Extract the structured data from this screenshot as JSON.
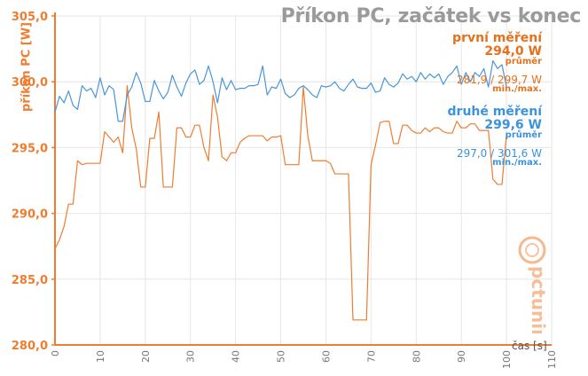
{
  "title": "Příkon PC, začátek vs konec",
  "ylabel": "příkon PC [W]",
  "xlabel": "čas [s]",
  "logo_text": "pctuning",
  "legend": [
    {
      "name": "první měření",
      "avg": "294,0 W",
      "avg_label": "průměr",
      "range": "281,9 / 299,7 W",
      "range_label": "min./max."
    },
    {
      "name": "druhé měření",
      "avg": "299,6 W",
      "avg_label": "průměr",
      "range": "297,0 / 301,6 W",
      "range_label": "min./max."
    }
  ],
  "colors": {
    "first": "#ee7d31",
    "second": "#4a96d8",
    "axis": "#ee7d31",
    "grid": "#e6e6e6"
  },
  "chart_data": {
    "type": "line",
    "title": "Příkon PC, začátek vs konec",
    "xlabel": "čas [s]",
    "ylabel": "příkon PC [W]",
    "xlim": [
      0,
      110
    ],
    "ylim": [
      280,
      305
    ],
    "x_ticks": [
      0,
      10,
      20,
      30,
      40,
      50,
      60,
      70,
      80,
      90,
      100,
      110
    ],
    "y_ticks": [
      "280,0",
      "285,0",
      "290,0",
      "295,0",
      "300,0",
      "305,0"
    ],
    "y_tick_values": [
      280,
      285,
      290,
      295,
      300,
      305
    ],
    "grid": true,
    "series": [
      {
        "name": "první měření",
        "color": "#ee7d31",
        "values": [
          287.3,
          288.0,
          289.0,
          290.7,
          290.7,
          294.0,
          293.7,
          293.8,
          293.8,
          293.8,
          293.8,
          296.2,
          295.8,
          295.4,
          295.8,
          294.6,
          299.7,
          296.5,
          294.9,
          292.0,
          292.0,
          295.7,
          295.7,
          297.7,
          292.0,
          292.0,
          292.0,
          296.5,
          296.5,
          295.8,
          295.8,
          296.7,
          296.7,
          295.0,
          294.0,
          299.0,
          297.3,
          294.3,
          294.0,
          294.6,
          294.6,
          295.4,
          295.7,
          295.9,
          295.9,
          295.9,
          295.9,
          295.5,
          295.8,
          295.8,
          295.9,
          293.7,
          293.7,
          293.7,
          293.7,
          299.6,
          295.9,
          294.0,
          294.0,
          294.0,
          294.0,
          293.8,
          293.0,
          293.0,
          293.0,
          293.0,
          281.9,
          281.9,
          281.9,
          281.9,
          293.7,
          295.2,
          296.9,
          297.0,
          297.0,
          295.3,
          295.3,
          296.7,
          296.7,
          296.3,
          296.1,
          296.1,
          296.5,
          296.2,
          296.5,
          296.5,
          296.2,
          296.1,
          296.1,
          297.0,
          296.5,
          296.5,
          296.8,
          296.8,
          296.3,
          296.3,
          296.3,
          292.6,
          292.2,
          292.2,
          296.0
        ]
      },
      {
        "name": "druhé měření",
        "color": "#4a96d8",
        "values": [
          297.7,
          298.9,
          298.4,
          299.3,
          298.2,
          297.9,
          299.7,
          299.3,
          299.5,
          298.8,
          300.3,
          299.0,
          299.7,
          299.4,
          297.0,
          297.0,
          299.0,
          299.6,
          300.7,
          299.9,
          298.5,
          298.5,
          300.1,
          299.3,
          298.7,
          299.2,
          300.5,
          299.6,
          298.9,
          299.9,
          300.6,
          300.9,
          299.8,
          300.1,
          301.2,
          300.0,
          298.4,
          300.3,
          299.4,
          300.1,
          299.4,
          299.5,
          299.5,
          299.7,
          299.7,
          299.8,
          301.2,
          299.0,
          299.6,
          299.5,
          300.2,
          299.1,
          298.8,
          299.0,
          299.5,
          299.7,
          299.4,
          299.0,
          298.8,
          299.7,
          299.6,
          299.7,
          300.0,
          299.5,
          299.3,
          299.8,
          300.2,
          299.6,
          299.5,
          299.5,
          299.9,
          299.2,
          299.3,
          300.3,
          299.8,
          299.6,
          299.9,
          300.6,
          300.2,
          300.4,
          300.0,
          300.7,
          300.2,
          300.6,
          300.3,
          300.6,
          299.8,
          300.4,
          300.7,
          301.2,
          299.8,
          300.7,
          300.0,
          300.7,
          300.4,
          301.0,
          299.6,
          301.6,
          301.0,
          301.3,
          299.6
        ]
      }
    ]
  }
}
